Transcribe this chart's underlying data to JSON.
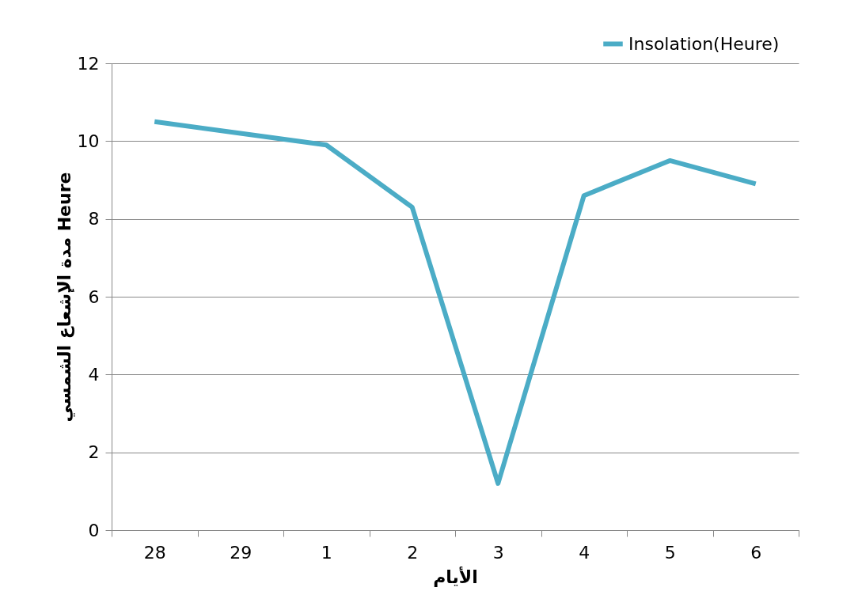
{
  "chart_data": {
    "type": "line",
    "xlabel": "الأيام",
    "ylabel": "مدة الإشعاع الشمسي Heure",
    "categories": [
      "28",
      "29",
      "1",
      "2",
      "3",
      "4",
      "5",
      "6"
    ],
    "series": [
      {
        "name": "Insolation(Heure)",
        "color": "#4bacc6",
        "values": [
          10.5,
          10.2,
          9.9,
          8.3,
          1.2,
          8.6,
          9.5,
          8.9
        ]
      }
    ],
    "ylim": [
      0,
      12
    ],
    "yticks": [
      0,
      2,
      4,
      6,
      8,
      10,
      12
    ],
    "grid": "y",
    "legend": "top right",
    "marker": "none",
    "line_style": "solid"
  }
}
